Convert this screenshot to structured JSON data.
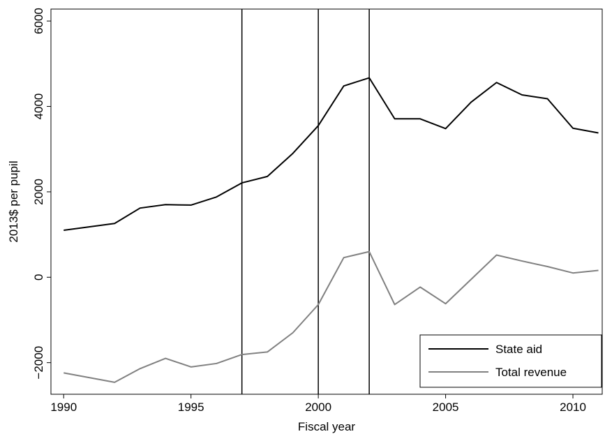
{
  "chart_data": {
    "type": "line",
    "xlabel": "Fiscal year",
    "ylabel": "2013$ per pupil",
    "x": [
      1990,
      1991,
      1992,
      1993,
      1994,
      1995,
      1996,
      1997,
      1998,
      1999,
      2000,
      2001,
      2002,
      2003,
      2004,
      2005,
      2006,
      2007,
      2008,
      2009,
      2010,
      2011
    ],
    "series": [
      {
        "name": "State aid",
        "color": "#000000",
        "values": [
          1100,
          1180,
          1260,
          1620,
          1700,
          1690,
          1880,
          2210,
          2360,
          2900,
          3550,
          4480,
          4670,
          3710,
          3710,
          3480,
          4100,
          4560,
          4270,
          4180,
          3490,
          3380
        ]
      },
      {
        "name": "Total revenue",
        "color": "#808080",
        "values": [
          -2240,
          -2350,
          -2460,
          -2140,
          -1900,
          -2100,
          -2020,
          -1810,
          -1750,
          -1300,
          -640,
          460,
          600,
          -640,
          -230,
          -620,
          -50,
          520,
          380,
          250,
          100,
          160
        ]
      }
    ],
    "vlines": [
      1997,
      2000,
      2002
    ],
    "xlim": [
      1989.5,
      2011.15
    ],
    "xticks": [
      1990,
      1995,
      2000,
      2005,
      2010
    ],
    "ylim": [
      -2740,
      6280
    ],
    "yticks": [
      {
        "value": -2000,
        "label": "−2000"
      },
      0,
      2000,
      4000,
      6000
    ],
    "legend": "lower right"
  }
}
